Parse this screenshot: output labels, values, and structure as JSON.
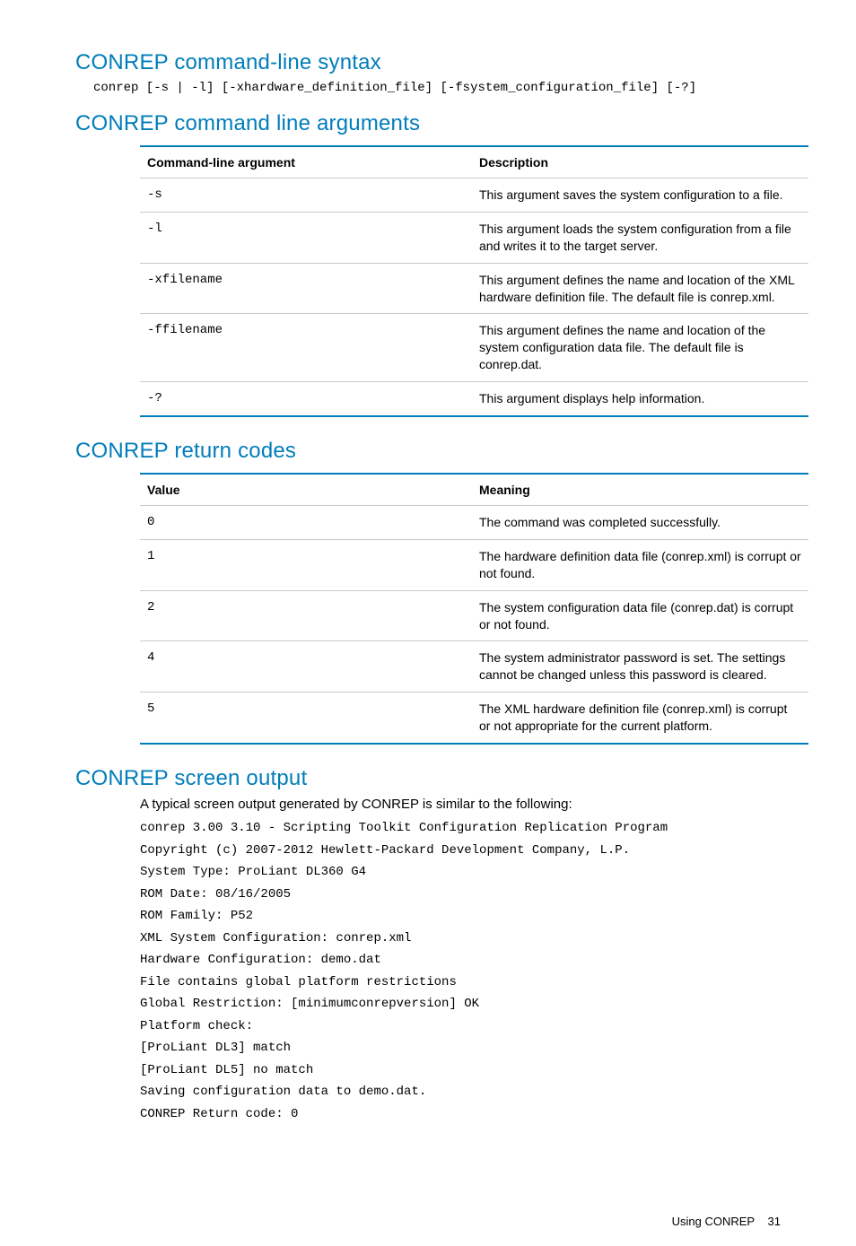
{
  "colors": {
    "accent": "#007dba",
    "rule": "#c9c9c9",
    "text": "#000000",
    "bg": "#ffffff"
  },
  "sections": {
    "syntax": {
      "heading": "CONREP command-line syntax",
      "line": "conrep [-s | -l] [-xhardware_definition_file] [-fsystem_configuration_file] [-?]"
    },
    "args": {
      "heading": "CONREP command line arguments",
      "table": {
        "columns": [
          "Command-line argument",
          "Description"
        ],
        "rows": [
          {
            "arg": "-s",
            "desc": "This argument saves the system configuration to a file."
          },
          {
            "arg": "-l",
            "desc": "This argument loads the system configuration from a file and writes it to the target server."
          },
          {
            "arg": "-xfilename",
            "desc": "This argument defines the name and location of the XML hardware definition file. The default file is conrep.xml."
          },
          {
            "arg": "-ffilename",
            "desc": "This argument defines the name and location of the system configuration data file. The default file is conrep.dat."
          },
          {
            "arg": "-?",
            "desc": "This argument displays help information."
          }
        ]
      }
    },
    "codes": {
      "heading": "CONREP return codes",
      "table": {
        "columns": [
          "Value",
          "Meaning"
        ],
        "rows": [
          {
            "val": "0",
            "desc": "The command was completed successfully."
          },
          {
            "val": "1",
            "desc": "The hardware definition data file (conrep.xml) is corrupt or not found."
          },
          {
            "val": "2",
            "desc": "The system configuration data file (conrep.dat) is corrupt or not found."
          },
          {
            "val": "4",
            "desc": "The system administrator password is set. The settings cannot be changed unless this password is cleared."
          },
          {
            "val": "5",
            "desc": "The XML hardware definition file (conrep.xml) is corrupt or not appropriate for the current platform."
          }
        ]
      }
    },
    "screen": {
      "heading": "CONREP screen output",
      "intro": "A typical screen output generated by CONREP is similar to the following:",
      "output": "conrep 3.00 3.10 - Scripting Toolkit Configuration Replication Program\nCopyright (c) 2007-2012 Hewlett-Packard Development Company, L.P.\nSystem Type: ProLiant DL360 G4\nROM Date: 08/16/2005\nROM Family: P52\nXML System Configuration: conrep.xml\nHardware Configuration: demo.dat\nFile contains global platform restrictions\nGlobal Restriction: [minimumconrepversion] OK\nPlatform check:\n[ProLiant DL3] match\n[ProLiant DL5] no match\nSaving configuration data to demo.dat.\nCONREP Return code: 0"
    }
  },
  "footer": {
    "label": "Using CONREP",
    "page": "31"
  }
}
